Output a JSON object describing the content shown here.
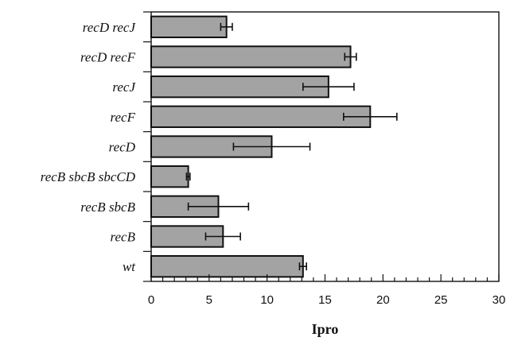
{
  "chart_data": {
    "type": "bar",
    "orientation": "horizontal",
    "categories": [
      "recD recJ",
      "recD recF",
      "recJ",
      "recF",
      "recD",
      "recB sbcB sbcCD",
      "recB sbcB",
      "recB",
      "wt"
    ],
    "values": [
      6.5,
      17.2,
      15.3,
      18.9,
      10.4,
      3.2,
      5.8,
      6.2,
      13.1
    ],
    "errors": [
      0.5,
      0.5,
      2.2,
      2.3,
      3.3,
      0.15,
      2.6,
      1.5,
      0.3
    ],
    "xlabel": "Ipro",
    "ylabel": "",
    "title": "",
    "xlim": [
      0,
      30
    ],
    "xticks": [
      0,
      5,
      10,
      15,
      20,
      25,
      30
    ],
    "grid": false,
    "colors": {
      "bar_fill": "#a3a3a3",
      "bar_stroke": "#111111"
    }
  }
}
